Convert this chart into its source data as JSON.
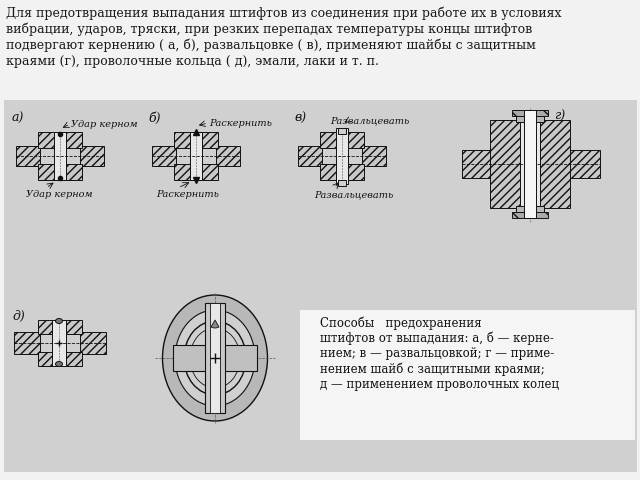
{
  "bg_color": "#d8d8d8",
  "page_bg": "#f2f2f2",
  "header_text_line1": "Для предотвращения выпадания штифтов из соединения при работе их в условиях",
  "header_text_line2": "вибрации, ударов, тряски, при резких перепадах температуры концы штифтов",
  "header_text_line3": "подвергают кернению ( а, б), развальцовке ( в), применяют шайбы с защитным",
  "header_text_line4": "краями (г), проволочные кольца ( д), эмали, лаки и т. п.",
  "caption_text": "Способы   предохранения\nштифтов от выпадания: а, б — керне-\nнием; в — развальцовкой; г — приме-\nнением шайб с защитными краями;\nд — применением проволочных колец",
  "label_a": "а)",
  "label_b": "б)",
  "label_v": "в)",
  "label_g": "г)",
  "label_d": "д)",
  "text_a_top": "Удар керном",
  "text_a_bot": "Удар керном",
  "text_b_top": "Раскернить",
  "text_b_bot": "Раскернить",
  "text_v_top": "Развальцевать",
  "text_v_bot": "Развальцевать",
  "lc": "#111111",
  "fc_hatch": "#c8c8c8",
  "fc_pin": "#f0f0f0",
  "fc_panel": "#d0d0d0",
  "fc_cap": "#f5f5f5",
  "fc_page": "#f2f2f2"
}
